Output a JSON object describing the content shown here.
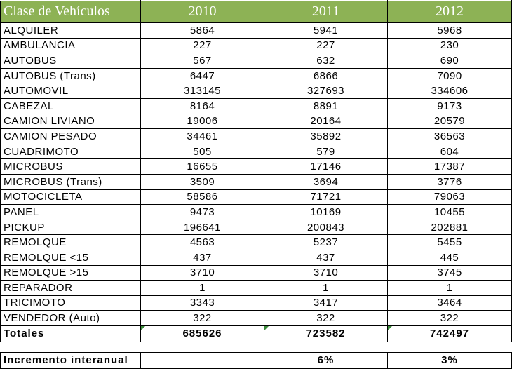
{
  "table": {
    "header": [
      "Clase de Vehículos",
      "2010",
      "2011",
      "2012"
    ],
    "rows": [
      [
        "ALQUILER",
        "5864",
        "5941",
        "5968"
      ],
      [
        "AMBULANCIA",
        "227",
        "227",
        "230"
      ],
      [
        "AUTOBUS",
        "567",
        "632",
        "690"
      ],
      [
        "AUTOBUS (Trans)",
        "6447",
        "6866",
        "7090"
      ],
      [
        "AUTOMOVIL",
        "313145",
        "327693",
        "334606"
      ],
      [
        "CABEZAL",
        "8164",
        "8891",
        "9173"
      ],
      [
        "CAMION LIVIANO",
        "19006",
        "20164",
        "20579"
      ],
      [
        "CAMION PESADO",
        "34461",
        "35892",
        "36563"
      ],
      [
        "CUADRIMOTO",
        "505",
        "579",
        "604"
      ],
      [
        "MICROBUS",
        "16655",
        "17146",
        "17387"
      ],
      [
        "MICROBUS (Trans)",
        "3509",
        "3694",
        "3776"
      ],
      [
        "MOTOCICLETA",
        "58586",
        "71721",
        "79063"
      ],
      [
        "PANEL",
        "9473",
        "10169",
        "10455"
      ],
      [
        "PICKUP",
        "196641",
        "200843",
        "202881"
      ],
      [
        "REMOLQUE",
        "4563",
        "5237",
        "5455"
      ],
      [
        "REMOLQUE <15",
        "437",
        "437",
        "445"
      ],
      [
        "REMOLQUE >15",
        "3710",
        "3710",
        "3745"
      ],
      [
        "REPARADOR",
        "1",
        "1",
        "1"
      ],
      [
        "TRICIMOTO",
        "3343",
        "3417",
        "3464"
      ],
      [
        "VENDEDOR (Auto)",
        "322",
        "322",
        "322"
      ]
    ],
    "totals": [
      "Totales",
      "685626",
      "723582",
      "742497"
    ],
    "increment": {
      "label": "Incremento interanual",
      "2011": "6%",
      "2012": "3%"
    }
  }
}
